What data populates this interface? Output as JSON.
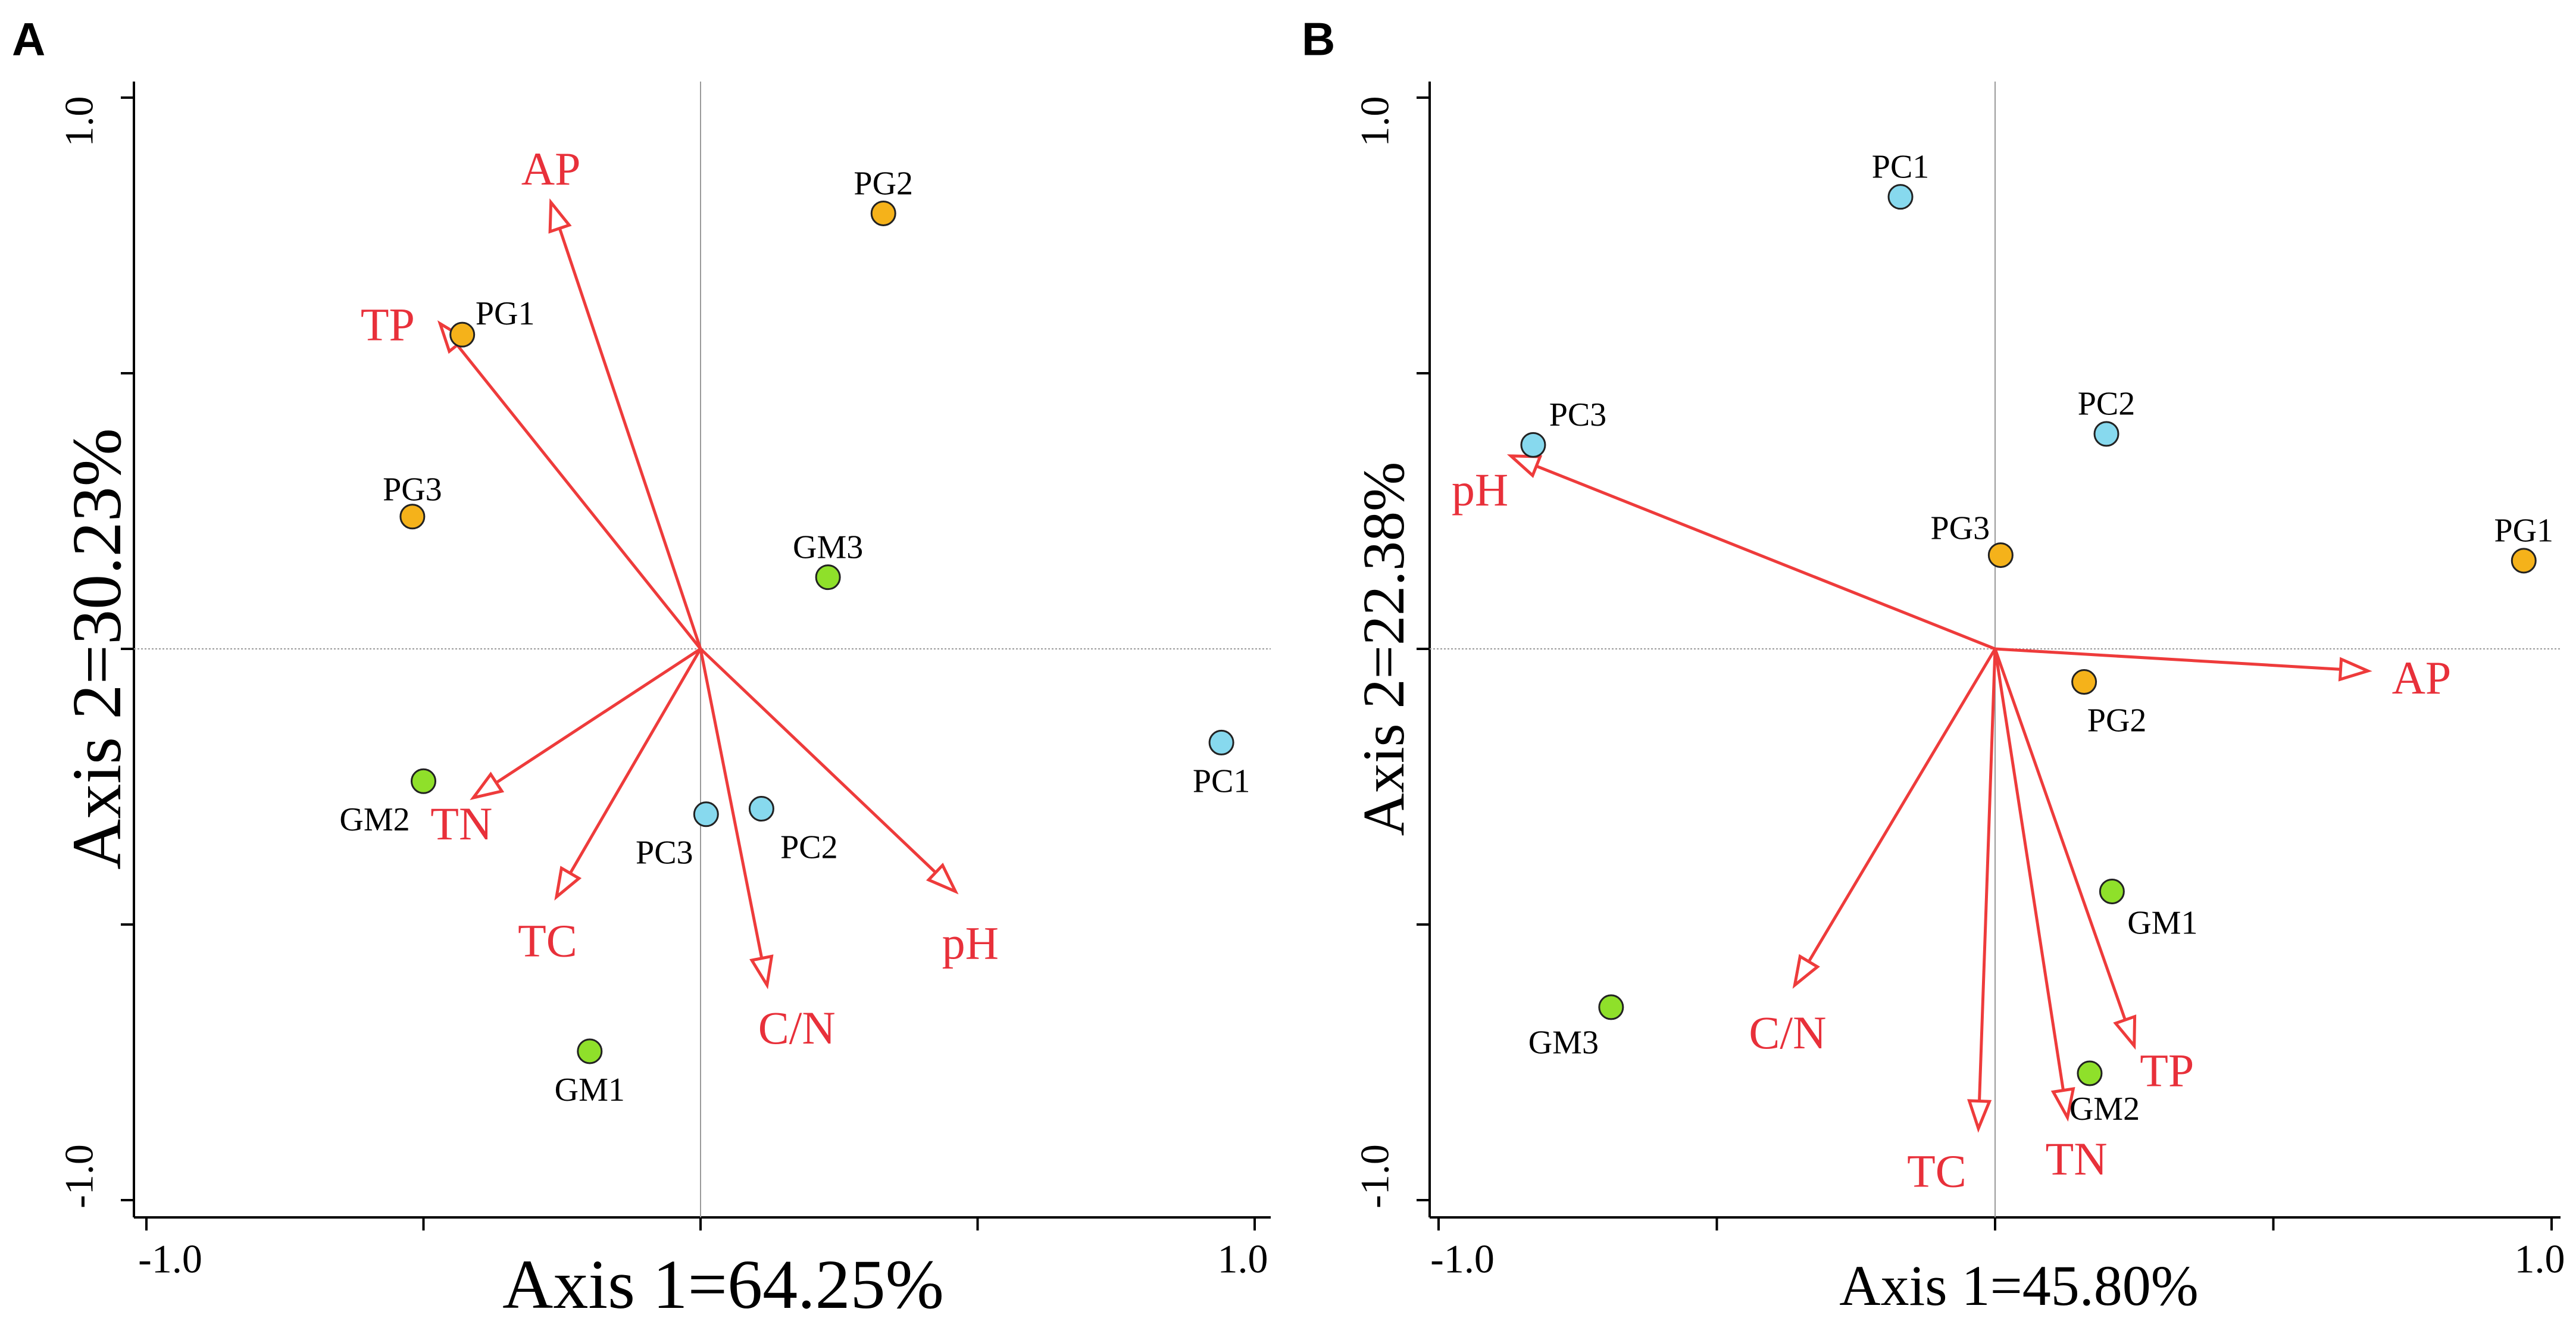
{
  "colors": {
    "arrow": "#ee3b3b",
    "arrow_label": "#e8303a",
    "PG": "#f5b21a",
    "GM": "#8fe02a",
    "PC": "#87d9ee",
    "axis": "#000000",
    "zero_line": "#9a9a9a"
  },
  "chart_data": [
    {
      "type": "scatter",
      "panel_label": "A",
      "xlabel": "Axis 1=64.25%",
      "ylabel": "Axis 2=30.23%",
      "xlim": [
        -1.0,
        1.0
      ],
      "ylim": [
        -1.0,
        1.0
      ],
      "x_tick_labels": [
        "-1.0",
        "1.0"
      ],
      "y_tick_labels": [
        "1.0",
        "-1.0"
      ],
      "points": [
        {
          "label": "PG1",
          "group": "PG",
          "x": -0.43,
          "y": 0.57
        },
        {
          "label": "PG2",
          "group": "PG",
          "x": 0.33,
          "y": 0.79
        },
        {
          "label": "PG3",
          "group": "PG",
          "x": -0.52,
          "y": 0.24
        },
        {
          "label": "GM1",
          "group": "GM",
          "x": -0.2,
          "y": -0.73
        },
        {
          "label": "GM2",
          "group": "GM",
          "x": -0.5,
          "y": -0.24
        },
        {
          "label": "GM3",
          "group": "GM",
          "x": 0.23,
          "y": 0.13
        },
        {
          "label": "PC1",
          "group": "PC",
          "x": 0.94,
          "y": -0.17
        },
        {
          "label": "PC2",
          "group": "PC",
          "x": 0.11,
          "y": -0.29
        },
        {
          "label": "PC3",
          "group": "PC",
          "x": 0.01,
          "y": -0.3
        }
      ],
      "arrows": [
        {
          "label": "AP",
          "x": -0.27,
          "y": 0.81
        },
        {
          "label": "TP",
          "x": -0.47,
          "y": 0.59
        },
        {
          "label": "TN",
          "x": -0.41,
          "y": -0.27
        },
        {
          "label": "TC",
          "x": -0.26,
          "y": -0.45
        },
        {
          "label": "C/N",
          "x": 0.12,
          "y": -0.61
        },
        {
          "label": "pH",
          "x": 0.46,
          "y": -0.44
        }
      ]
    },
    {
      "type": "scatter",
      "panel_label": "B",
      "xlabel": "Axis 1=45.80%",
      "ylabel": "Axis 2=22.38%",
      "xlim": [
        -1.0,
        1.0
      ],
      "ylim": [
        -1.0,
        1.0
      ],
      "x_tick_labels": [
        "-1.0",
        "1.0"
      ],
      "y_tick_labels": [
        "1.0",
        "-1.0"
      ],
      "points": [
        {
          "label": "PG1",
          "group": "PG",
          "x": 0.95,
          "y": 0.16
        },
        {
          "label": "PG2",
          "group": "PG",
          "x": 0.16,
          "y": -0.06
        },
        {
          "label": "PG3",
          "group": "PG",
          "x": 0.01,
          "y": 0.17
        },
        {
          "label": "GM1",
          "group": "GM",
          "x": 0.21,
          "y": -0.44
        },
        {
          "label": "GM2",
          "group": "GM",
          "x": 0.17,
          "y": -0.77
        },
        {
          "label": "GM3",
          "group": "GM",
          "x": -0.69,
          "y": -0.65
        },
        {
          "label": "PC1",
          "group": "PC",
          "x": -0.17,
          "y": 0.82
        },
        {
          "label": "PC2",
          "group": "PC",
          "x": 0.2,
          "y": 0.39
        },
        {
          "label": "PC3",
          "group": "PC",
          "x": -0.83,
          "y": 0.37
        }
      ],
      "arrows": [
        {
          "label": "AP",
          "x": 0.67,
          "y": -0.04
        },
        {
          "label": "pH",
          "x": -0.87,
          "y": 0.35
        },
        {
          "label": "C/N",
          "x": -0.36,
          "y": -0.61
        },
        {
          "label": "TC",
          "x": -0.03,
          "y": -0.87
        },
        {
          "label": "TN",
          "x": 0.13,
          "y": -0.85
        },
        {
          "label": "TP",
          "x": 0.25,
          "y": -0.72
        }
      ]
    }
  ]
}
